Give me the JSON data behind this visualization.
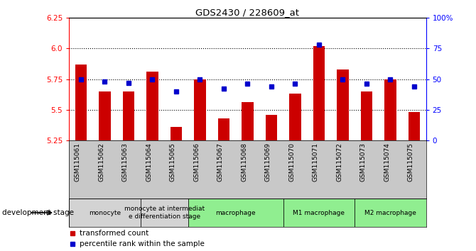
{
  "title": "GDS2430 / 228609_at",
  "samples": [
    "GSM115061",
    "GSM115062",
    "GSM115063",
    "GSM115064",
    "GSM115065",
    "GSM115066",
    "GSM115067",
    "GSM115068",
    "GSM115069",
    "GSM115070",
    "GSM115071",
    "GSM115072",
    "GSM115073",
    "GSM115074",
    "GSM115075"
  ],
  "transformed_count": [
    5.87,
    5.65,
    5.65,
    5.81,
    5.36,
    5.75,
    5.43,
    5.56,
    5.46,
    5.63,
    6.02,
    5.83,
    5.65,
    5.75,
    5.48
  ],
  "percentile_rank": [
    50,
    48,
    47,
    50,
    40,
    50,
    42,
    46,
    44,
    46,
    78,
    50,
    46,
    50,
    44
  ],
  "ymin": 5.25,
  "ymax": 6.25,
  "yticks": [
    5.25,
    5.5,
    5.75,
    6.0,
    6.25
  ],
  "right_yticks": [
    0,
    25,
    50,
    75,
    100
  ],
  "grid_lines": [
    5.5,
    5.75,
    6.0
  ],
  "groups": [
    {
      "label": "monocyte",
      "start": 0,
      "end": 3,
      "color": "#d3d3d3"
    },
    {
      "label": "monocyte at intermediat\ne differentiation stage",
      "start": 3,
      "end": 5,
      "color": "#d3d3d3"
    },
    {
      "label": "macrophage",
      "start": 5,
      "end": 9,
      "color": "#90ee90"
    },
    {
      "label": "M1 macrophage",
      "start": 9,
      "end": 12,
      "color": "#90ee90"
    },
    {
      "label": "M2 macrophage",
      "start": 12,
      "end": 15,
      "color": "#90ee90"
    }
  ],
  "bar_color": "#cc0000",
  "dot_color": "#0000cc",
  "bar_width": 0.5,
  "legend_items": [
    {
      "label": "transformed count",
      "color": "#cc0000"
    },
    {
      "label": "percentile rank within the sample",
      "color": "#0000cc"
    }
  ],
  "dev_stage_label": "development stage"
}
